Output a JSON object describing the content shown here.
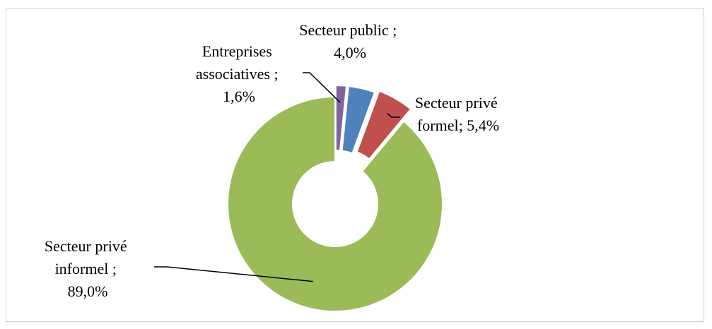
{
  "chart_data": {
    "type": "pie",
    "categories": [
      "Secteur privé informel",
      "Entreprises associatives",
      "Secteur public",
      "Secteur privé formel"
    ],
    "values": [
      89.0,
      1.6,
      4.0,
      5.4
    ],
    "colors": [
      "#9bbb59",
      "#8064a2",
      "#4f81bd",
      "#c0504d"
    ],
    "labels": [
      {
        "lines": [
          "Secteur privé",
          "informel ;",
          "89,0%"
        ]
      },
      {
        "lines": [
          "Entreprises",
          "associatives ;",
          "1,6%"
        ]
      },
      {
        "lines": [
          "Secteur public ;",
          "4,0%"
        ]
      },
      {
        "lines": [
          "Secteur privé",
          "formel; 5,4%"
        ]
      }
    ]
  }
}
